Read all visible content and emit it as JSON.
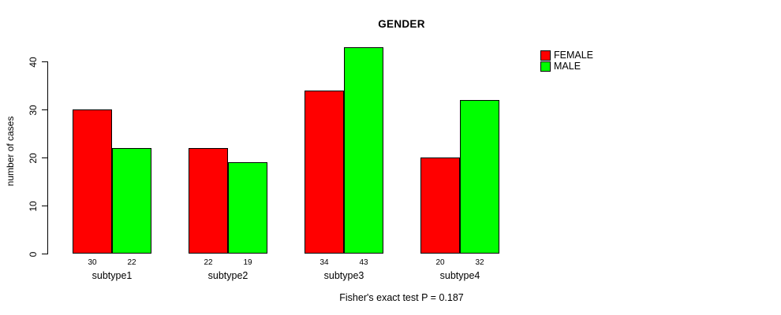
{
  "chart_data": {
    "type": "bar",
    "title": "GENDER",
    "ylabel": "number of cases",
    "xlabel": "",
    "categories": [
      "subtype1",
      "subtype2",
      "subtype3",
      "subtype4"
    ],
    "series": [
      {
        "name": "FEMALE",
        "color": "#ff0000",
        "values": [
          30,
          22,
          34,
          20
        ]
      },
      {
        "name": "MALE",
        "color": "#00ff00",
        "values": [
          22,
          19,
          43,
          32
        ]
      }
    ],
    "yticks": [
      0,
      10,
      20,
      30,
      40
    ],
    "ylim": [
      0,
      43
    ],
    "grid": false,
    "legend_position": "top-right",
    "bar_value_labels_shown": true,
    "annotation": "Fisher's exact test P = 0.187"
  },
  "colors": {
    "background": "#ffffff",
    "axis": "#000000",
    "text": "#000000"
  }
}
